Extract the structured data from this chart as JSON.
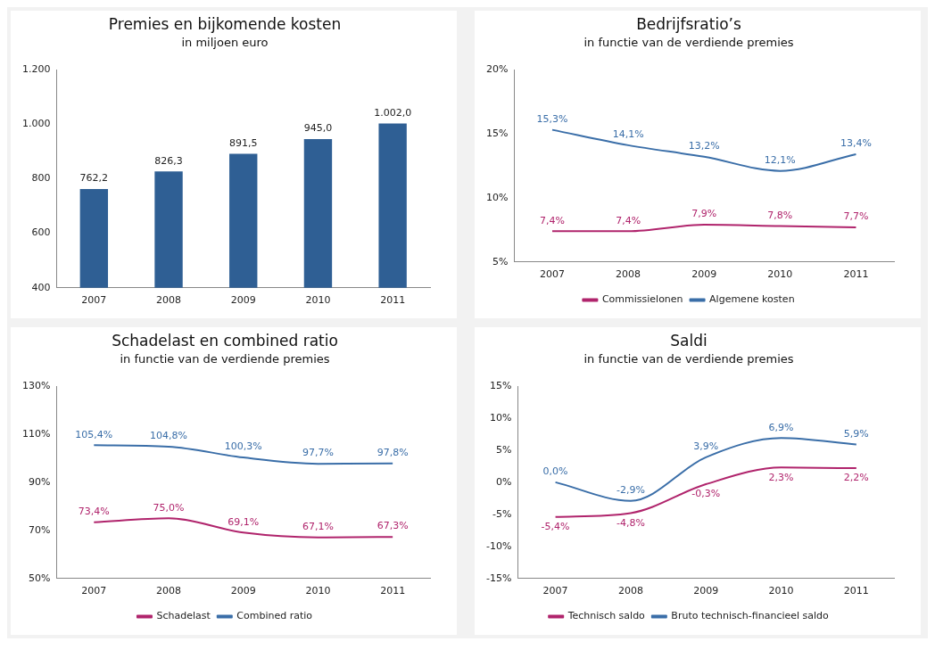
{
  "chart_data": [
    {
      "type": "bar",
      "title": "Premies en bijkomende kosten",
      "subtitle": "in miljoen euro",
      "categories": [
        "2007",
        "2008",
        "2009",
        "2010",
        "2011"
      ],
      "series": [
        {
          "color": "#2f5f94",
          "values": [
            762.2,
            826.3,
            891.5,
            945.0,
            1002.0
          ],
          "value_labels": [
            "762,2",
            "826,3",
            "891,5",
            "945,0",
            "1.002,0"
          ]
        }
      ],
      "ylim": [
        400,
        1200
      ],
      "yticks": [
        {
          "value": 400,
          "label": "400"
        },
        {
          "value": 600,
          "label": "600"
        },
        {
          "value": 800,
          "label": "800"
        },
        {
          "value": 1000,
          "label": "1.000"
        },
        {
          "value": 1200,
          "label": "1.200"
        }
      ],
      "grid": false,
      "legend": false
    },
    {
      "type": "line",
      "title": "Bedrijfsratio’s",
      "subtitle": "in functie van de verdiende premies",
      "categories": [
        "2007",
        "2008",
        "2009",
        "2010",
        "2011"
      ],
      "series": [
        {
          "name": "Commissielonen",
          "color": "#b0246c",
          "values": [
            7.4,
            7.4,
            7.9,
            7.8,
            7.7
          ],
          "value_labels": [
            "7,4%",
            "7,4%",
            "7,9%",
            "7,8%",
            "7,7%"
          ]
        },
        {
          "name": "Algemene kosten",
          "color": "#3a6ea8",
          "values": [
            15.3,
            14.1,
            13.2,
            12.1,
            13.4
          ],
          "value_labels": [
            "15,3%",
            "14,1%",
            "13,2%",
            "12,1%",
            "13,4%"
          ]
        }
      ],
      "ylim": [
        5,
        20
      ],
      "yticks": [
        {
          "value": 5,
          "label": "5%"
        },
        {
          "value": 10,
          "label": "10%"
        },
        {
          "value": 15,
          "label": "15%"
        },
        {
          "value": 20,
          "label": "20%"
        }
      ],
      "grid": false,
      "legend": "bottom",
      "marker": "none"
    },
    {
      "type": "line",
      "title": "Schadelast en combined ratio",
      "subtitle": "in functie van de verdiende premies",
      "categories": [
        "2007",
        "2008",
        "2009",
        "2010",
        "2011"
      ],
      "series": [
        {
          "name": "Schadelast",
          "color": "#b0246c",
          "values": [
            73.4,
            75.0,
            69.1,
            67.1,
            67.3
          ],
          "value_labels": [
            "73,4%",
            "75,0%",
            "69,1%",
            "67,1%",
            "67,3%"
          ]
        },
        {
          "name": "Combined ratio",
          "color": "#3a6ea8",
          "values": [
            105.4,
            104.8,
            100.3,
            97.7,
            97.8
          ],
          "value_labels": [
            "105,4%",
            "104,8%",
            "100,3%",
            "97,7%",
            "97,8%"
          ]
        }
      ],
      "ylim": [
        50,
        130
      ],
      "yticks": [
        {
          "value": 50,
          "label": "50%"
        },
        {
          "value": 70,
          "label": "70%"
        },
        {
          "value": 90,
          "label": "90%"
        },
        {
          "value": 110,
          "label": "110%"
        },
        {
          "value": 130,
          "label": "130%"
        }
      ],
      "grid": false,
      "legend": "bottom",
      "marker": "none"
    },
    {
      "type": "line",
      "title": "Saldi",
      "subtitle": "in functie van de verdiende premies",
      "categories": [
        "2007",
        "2008",
        "2009",
        "2010",
        "2011"
      ],
      "series": [
        {
          "name": "Technisch saldo",
          "color": "#b0246c",
          "values": [
            -5.4,
            -4.8,
            -0.3,
            2.3,
            2.2
          ],
          "value_labels": [
            "-5,4%",
            "-4,8%",
            "-0,3%",
            "2,3%",
            "2,2%"
          ]
        },
        {
          "name": "Bruto technisch-financieel saldo",
          "color": "#3a6ea8",
          "values": [
            0.0,
            -2.9,
            3.9,
            6.9,
            5.9
          ],
          "value_labels": [
            "0,0%",
            "-2,9%",
            "3,9%",
            "6,9%",
            "5,9%"
          ]
        }
      ],
      "ylim": [
        -15,
        15
      ],
      "yticks": [
        {
          "value": -15,
          "label": "-15%"
        },
        {
          "value": -10,
          "label": "-10%"
        },
        {
          "value": -5,
          "label": "-5%"
        },
        {
          "value": 0,
          "label": "0%"
        },
        {
          "value": 5,
          "label": "5%"
        },
        {
          "value": 10,
          "label": "10%"
        },
        {
          "value": 15,
          "label": "15%"
        }
      ],
      "grid": false,
      "legend": "bottom",
      "marker": "none"
    }
  ]
}
